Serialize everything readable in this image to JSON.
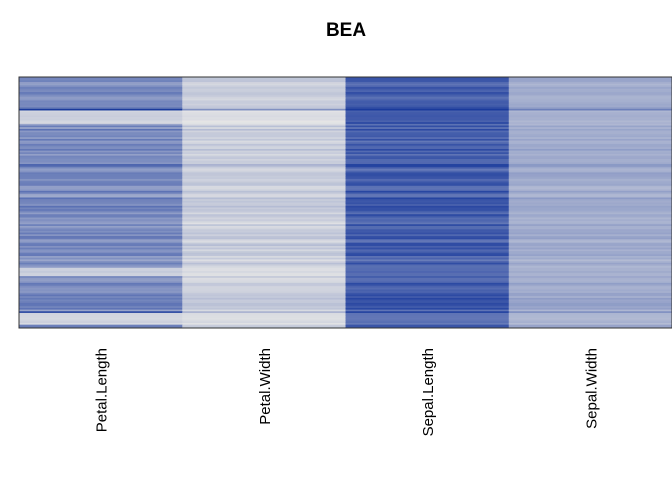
{
  "chart_data": {
    "type": "heatmap",
    "title": "BEA",
    "xlabel": "",
    "ylabel": "",
    "columns": [
      "Petal.Length",
      "Petal.Width",
      "Sepal.Length",
      "Sepal.Width"
    ],
    "n_rows": 150,
    "color_low": "#e6e6e6",
    "color_high": "#1a3a9c",
    "border_color": "#333333",
    "grid": false,
    "legend": "none",
    "column_base_intensity": [
      0.52,
      0.14,
      0.78,
      0.34
    ],
    "highlight_rows": [
      {
        "row": 19,
        "columns": [
          1.0,
          0.5,
          1.0,
          0.6
        ]
      },
      {
        "row": 27,
        "columns": [
          0.08,
          0.02,
          0.92,
          0.3
        ]
      },
      {
        "row": 52,
        "columns": [
          0.75,
          0.3,
          0.95,
          0.45
        ]
      },
      {
        "row": 88,
        "columns": [
          0.6,
          0.2,
          0.9,
          0.4
        ]
      },
      {
        "row": 140,
        "columns": [
          0.9,
          0.3,
          0.95,
          0.5
        ]
      }
    ],
    "light_bands": [
      {
        "start": 20,
        "end": 27,
        "column_intensity": [
          0.12,
          0.04,
          0.8,
          0.3
        ]
      },
      {
        "start": 114,
        "end": 118,
        "column_intensity": [
          0.14,
          0.06,
          0.72,
          0.32
        ]
      },
      {
        "start": 141,
        "end": 147,
        "column_intensity": [
          0.1,
          0.06,
          0.66,
          0.28
        ]
      }
    ]
  }
}
